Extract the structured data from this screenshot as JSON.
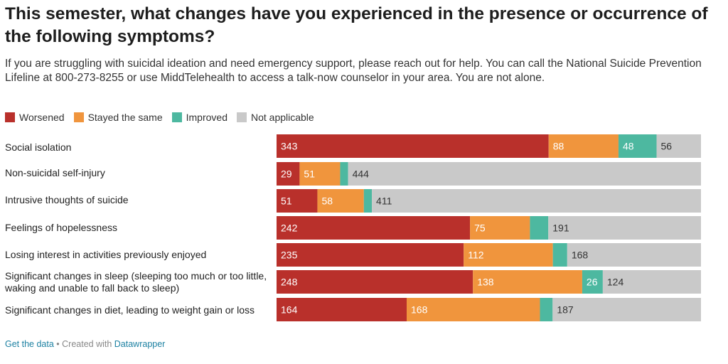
{
  "title": "This semester, what changes have you experienced in the presence or occurrence of the following symptoms?",
  "subtitle": "If you are struggling with suicidal ideation and need emergency support, please reach out for help. You can call the National Suicide Prevention Lifeline at 800-273-8255 or use MiddTelehealth to access a talk-now counselor in your area. You are not alone.",
  "footer": {
    "get_data": "Get the data",
    "separator": " • Created with ",
    "datawrapper": "Datawrapper"
  },
  "chart_data": {
    "type": "bar",
    "orientation": "horizontal",
    "stacked": true,
    "legend_position": "top-left",
    "categories": [
      "Social isolation",
      "Non-suicidal self-injury",
      "Intrusive thoughts of suicide",
      "Feelings of hopelessness",
      "Losing interest in activities previously enjoyed",
      "Significant changes in sleep (sleeping too much or too little, waking and unable to fall back to sleep)",
      "Significant changes in diet, leading to weight gain or loss"
    ],
    "series": [
      {
        "name": "Worsened",
        "color": "#b9302b",
        "values": [
          343,
          29,
          51,
          242,
          235,
          248,
          164
        ],
        "text_color": "#ffffff"
      },
      {
        "name": "Stayed the same",
        "color": "#f0953d",
        "values": [
          88,
          51,
          58,
          75,
          112,
          138,
          168
        ],
        "text_color": "#ffffff"
      },
      {
        "name": "Improved",
        "color": "#4db8a0",
        "values": [
          48,
          10,
          10,
          23,
          18,
          26,
          16
        ],
        "text_color": "#ffffff"
      },
      {
        "name": "Not applicable",
        "color": "#c9c9c9",
        "values": [
          56,
          444,
          411,
          191,
          168,
          124,
          187
        ],
        "text_color": "#333333"
      }
    ],
    "value_labels_shown": [
      [
        true,
        true,
        true,
        true
      ],
      [
        true,
        true,
        false,
        true
      ],
      [
        true,
        true,
        false,
        true
      ],
      [
        true,
        true,
        false,
        true
      ],
      [
        true,
        true,
        false,
        true
      ],
      [
        true,
        true,
        true,
        true
      ],
      [
        true,
        true,
        false,
        true
      ]
    ]
  }
}
